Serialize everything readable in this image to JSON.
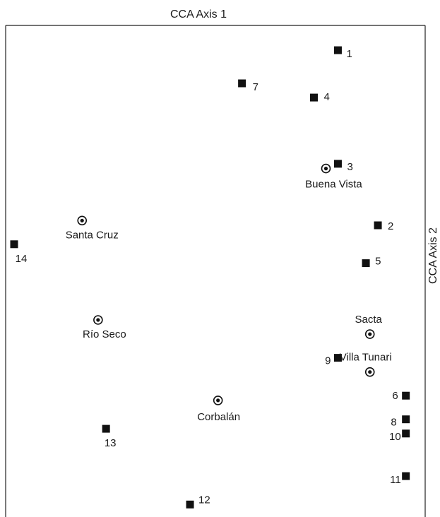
{
  "chart_data": {
    "type": "scatter",
    "title": "",
    "x_axis_label": "CCA Axis 1",
    "y_axis_label": "CCA Axis 2",
    "series": [
      {
        "marker": "square",
        "color": "#111111",
        "points": [
          {
            "label": "1",
            "x": 0.81,
            "y": 0.97
          },
          {
            "label": "2",
            "x": 0.91,
            "y": 0.6
          },
          {
            "label": "3",
            "x": 0.81,
            "y": 0.73
          },
          {
            "label": "4",
            "x": 0.75,
            "y": 0.87
          },
          {
            "label": "5",
            "x": 0.88,
            "y": 0.52
          },
          {
            "label": "6",
            "x": 0.98,
            "y": 0.24
          },
          {
            "label": "7",
            "x": 0.57,
            "y": 0.9
          },
          {
            "label": "8",
            "x": 0.98,
            "y": 0.19
          },
          {
            "label": "9",
            "x": 0.81,
            "y": 0.32
          },
          {
            "label": "10",
            "x": 0.98,
            "y": 0.16
          },
          {
            "label": "11",
            "x": 0.98,
            "y": 0.07
          },
          {
            "label": "12",
            "x": 0.44,
            "y": 0.01
          },
          {
            "label": "13",
            "x": 0.23,
            "y": 0.17
          },
          {
            "label": "14",
            "x": 0.0,
            "y": 0.56
          }
        ]
      },
      {
        "marker": "circle-dot",
        "color": "#111111",
        "points": [
          {
            "label": "Buena Vista",
            "x": 0.78,
            "y": 0.72
          },
          {
            "label": "Santa Cruz",
            "x": 0.17,
            "y": 0.61
          },
          {
            "label": "Río Seco",
            "x": 0.21,
            "y": 0.4
          },
          {
            "label": "Sacta",
            "x": 0.89,
            "y": 0.37
          },
          {
            "label": "Villa Tunari",
            "x": 0.89,
            "y": 0.29
          },
          {
            "label": "Corbalán",
            "x": 0.51,
            "y": 0.23
          }
        ]
      }
    ],
    "xlim": [
      0,
      1
    ],
    "ylim": [
      0,
      1
    ],
    "grid": false
  }
}
